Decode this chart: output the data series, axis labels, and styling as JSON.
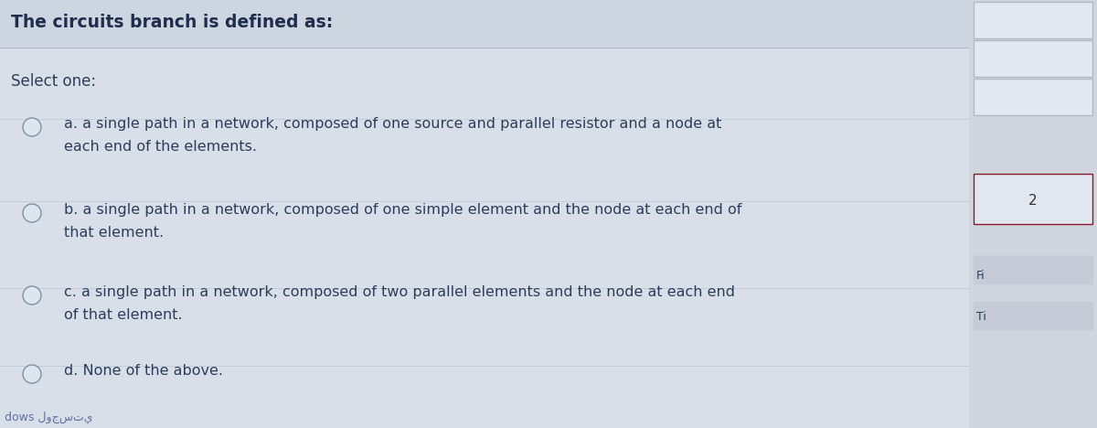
{
  "title": "The circuits branch is defined as:",
  "select_label": "Select one:",
  "options": [
    {
      "line1": "a. a single path in a network, composed of one source and parallel resistor and a node at",
      "line2": "each end of the elements."
    },
    {
      "line1": "b. a single path in a network, composed of one simple element and the node at each end of",
      "line2": "that element."
    },
    {
      "line1": "c. a single path in a network, composed of two parallel elements and the node at each end",
      "line2": "of that element."
    },
    {
      "line1": "d. None of the above.",
      "line2": ""
    }
  ],
  "bg_color": "#c5ccd8",
  "main_bg": "#dde3ea",
  "text_color": "#2d3d5c",
  "title_color": "#1e2d4e",
  "footer_text": "dows لوجستي",
  "sidebar_bg": "#d0d5de",
  "sidebar_box_colors": [
    "#e8eef4",
    "#e8eef4",
    "#e8eef4",
    "#e8eef4"
  ],
  "active_box_color": "#8b1a2a",
  "fig_width": 12.0,
  "fig_height": 4.68,
  "title_fontsize": 13.5,
  "body_fontsize": 11.5,
  "select_fontsize": 12
}
